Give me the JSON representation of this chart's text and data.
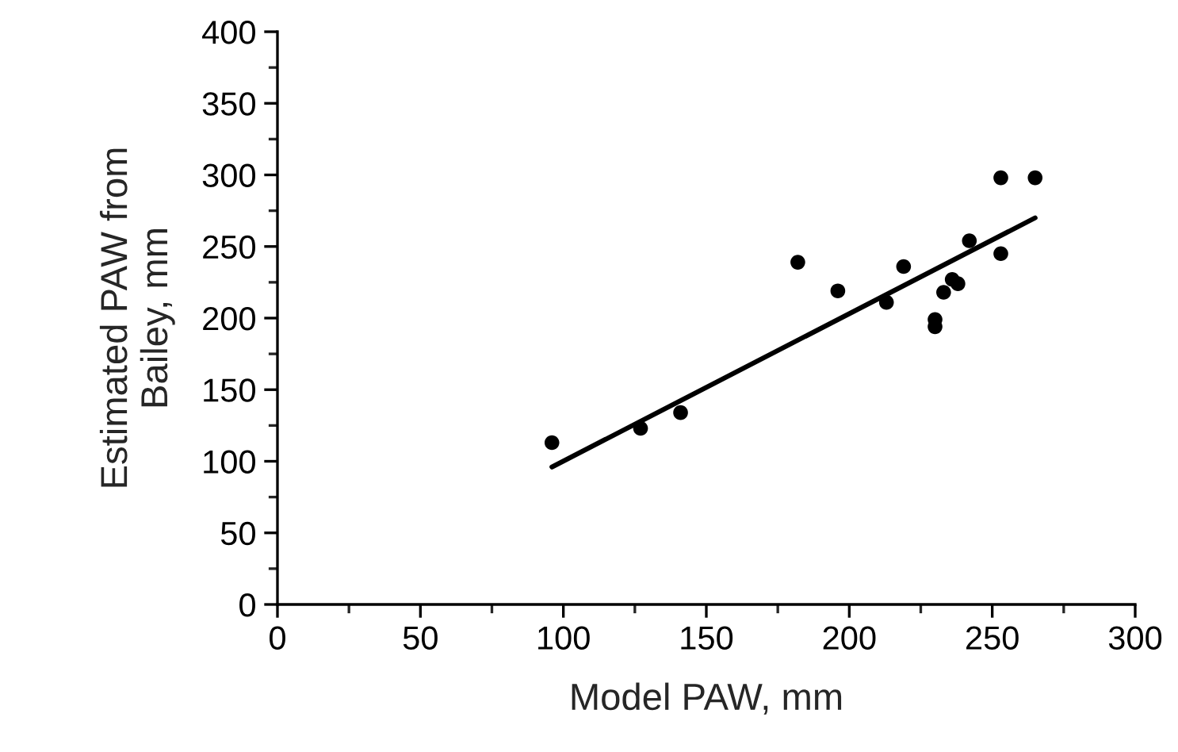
{
  "chart_data": {
    "type": "scatter",
    "xlabel": "Model PAW, mm",
    "ylabel": "Estimated PAW from\nBailey, mm",
    "x": [
      96,
      127,
      141,
      182,
      196,
      213,
      219,
      230,
      230,
      233,
      236,
      238,
      242,
      253,
      253,
      265
    ],
    "series": [
      {
        "color": "#000000",
        "marker": "circle",
        "values": [
          113,
          123,
          134,
          239,
          219,
          211,
          236,
          199,
          194,
          218,
          227,
          224,
          254,
          245,
          298,
          298
        ]
      },
      {
        "type": "line",
        "color": "#000000",
        "marker": "none",
        "x": [
          96,
          265
        ],
        "values": [
          96,
          270
        ]
      }
    ],
    "grid": false,
    "xlim": [
      0,
      300
    ],
    "ylim": [
      0,
      400
    ],
    "xticks": [
      0,
      {
        "value": 25,
        "label": null
      },
      50,
      {
        "value": 75,
        "label": null
      },
      100,
      {
        "value": 125,
        "label": null
      },
      150,
      {
        "value": 175,
        "label": null
      },
      200,
      {
        "value": 225,
        "label": null
      },
      250,
      {
        "value": 275,
        "label": null
      },
      300
    ],
    "yticks": [
      0,
      {
        "value": 25,
        "label": null
      },
      50,
      {
        "value": 75,
        "label": null
      },
      100,
      {
        "value": 125,
        "label": null
      },
      150,
      {
        "value": 175,
        "label": null
      },
      200,
      {
        "value": 225,
        "label": null
      },
      250,
      {
        "value": 275,
        "label": null
      },
      300,
      {
        "value": 325,
        "label": null
      },
      350,
      {
        "value": 375,
        "label": null
      },
      400
    ]
  }
}
